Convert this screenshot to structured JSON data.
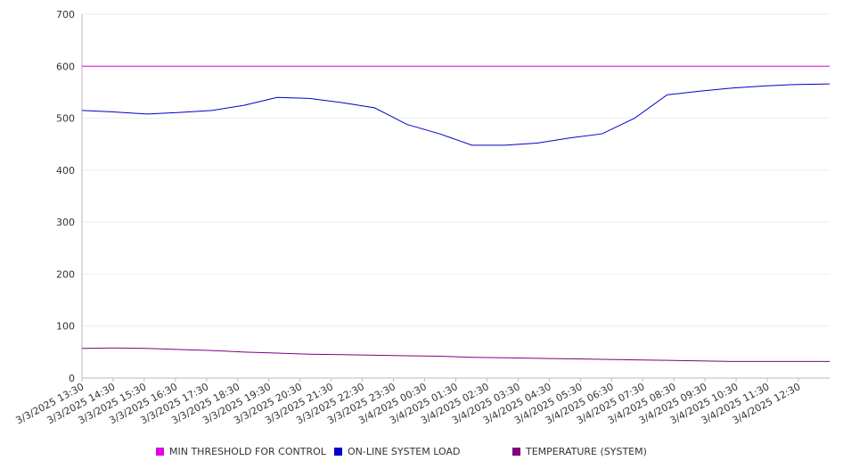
{
  "chart_data": {
    "type": "line",
    "ylim": [
      0,
      700
    ],
    "y_ticks": [
      "0",
      "100",
      "200",
      "300",
      "400",
      "500",
      "600",
      "700"
    ],
    "x_ticks": [
      "3/3/2025 13:30",
      "3/3/2025 14:30",
      "3/3/2025 15:30",
      "3/3/2025 16:30",
      "3/3/2025 17:30",
      "3/3/2025 18:30",
      "3/3/2025 19:30",
      "3/3/2025 20:30",
      "3/3/2025 21:30",
      "3/3/2025 22:30",
      "3/3/2025 23:30",
      "3/4/2025 00:30",
      "3/4/2025 01:30",
      "3/4/2025 02:30",
      "3/4/2025 03:30",
      "3/4/2025 04:30",
      "3/4/2025 05:30",
      "3/4/2025 06:30",
      "3/4/2025 07:30",
      "3/4/2025 08:30",
      "3/4/2025 09:30",
      "3/4/2025 10:30",
      "3/4/2025 11:30",
      "3/4/2025 12:30"
    ],
    "grid": true,
    "legend_position": "bottom",
    "series": [
      {
        "name": "MIN THRESHOLD FOR CONTROL",
        "color": "#e000e0",
        "values": [
          600,
          600,
          600,
          600,
          600,
          600,
          600,
          600,
          600,
          600,
          600,
          600,
          600,
          600,
          600,
          600,
          600,
          600,
          600,
          600,
          600,
          600,
          600,
          600
        ]
      },
      {
        "name": "ON-LINE SYSTEM LOAD",
        "color": "#0000cc",
        "values": [
          515,
          512,
          508,
          511,
          515,
          525,
          540,
          538,
          530,
          520,
          488,
          470,
          448,
          448,
          452,
          462,
          470,
          500,
          545,
          552,
          558,
          562,
          565,
          566
        ]
      },
      {
        "name": "TEMPERATURE (SYSTEM)",
        "color": "#800080",
        "values": [
          57,
          58,
          57,
          55,
          53,
          50,
          48,
          46,
          45,
          44,
          43,
          42,
          40,
          39,
          38,
          37,
          36,
          35,
          34,
          33,
          32,
          32,
          32,
          32
        ]
      }
    ]
  }
}
